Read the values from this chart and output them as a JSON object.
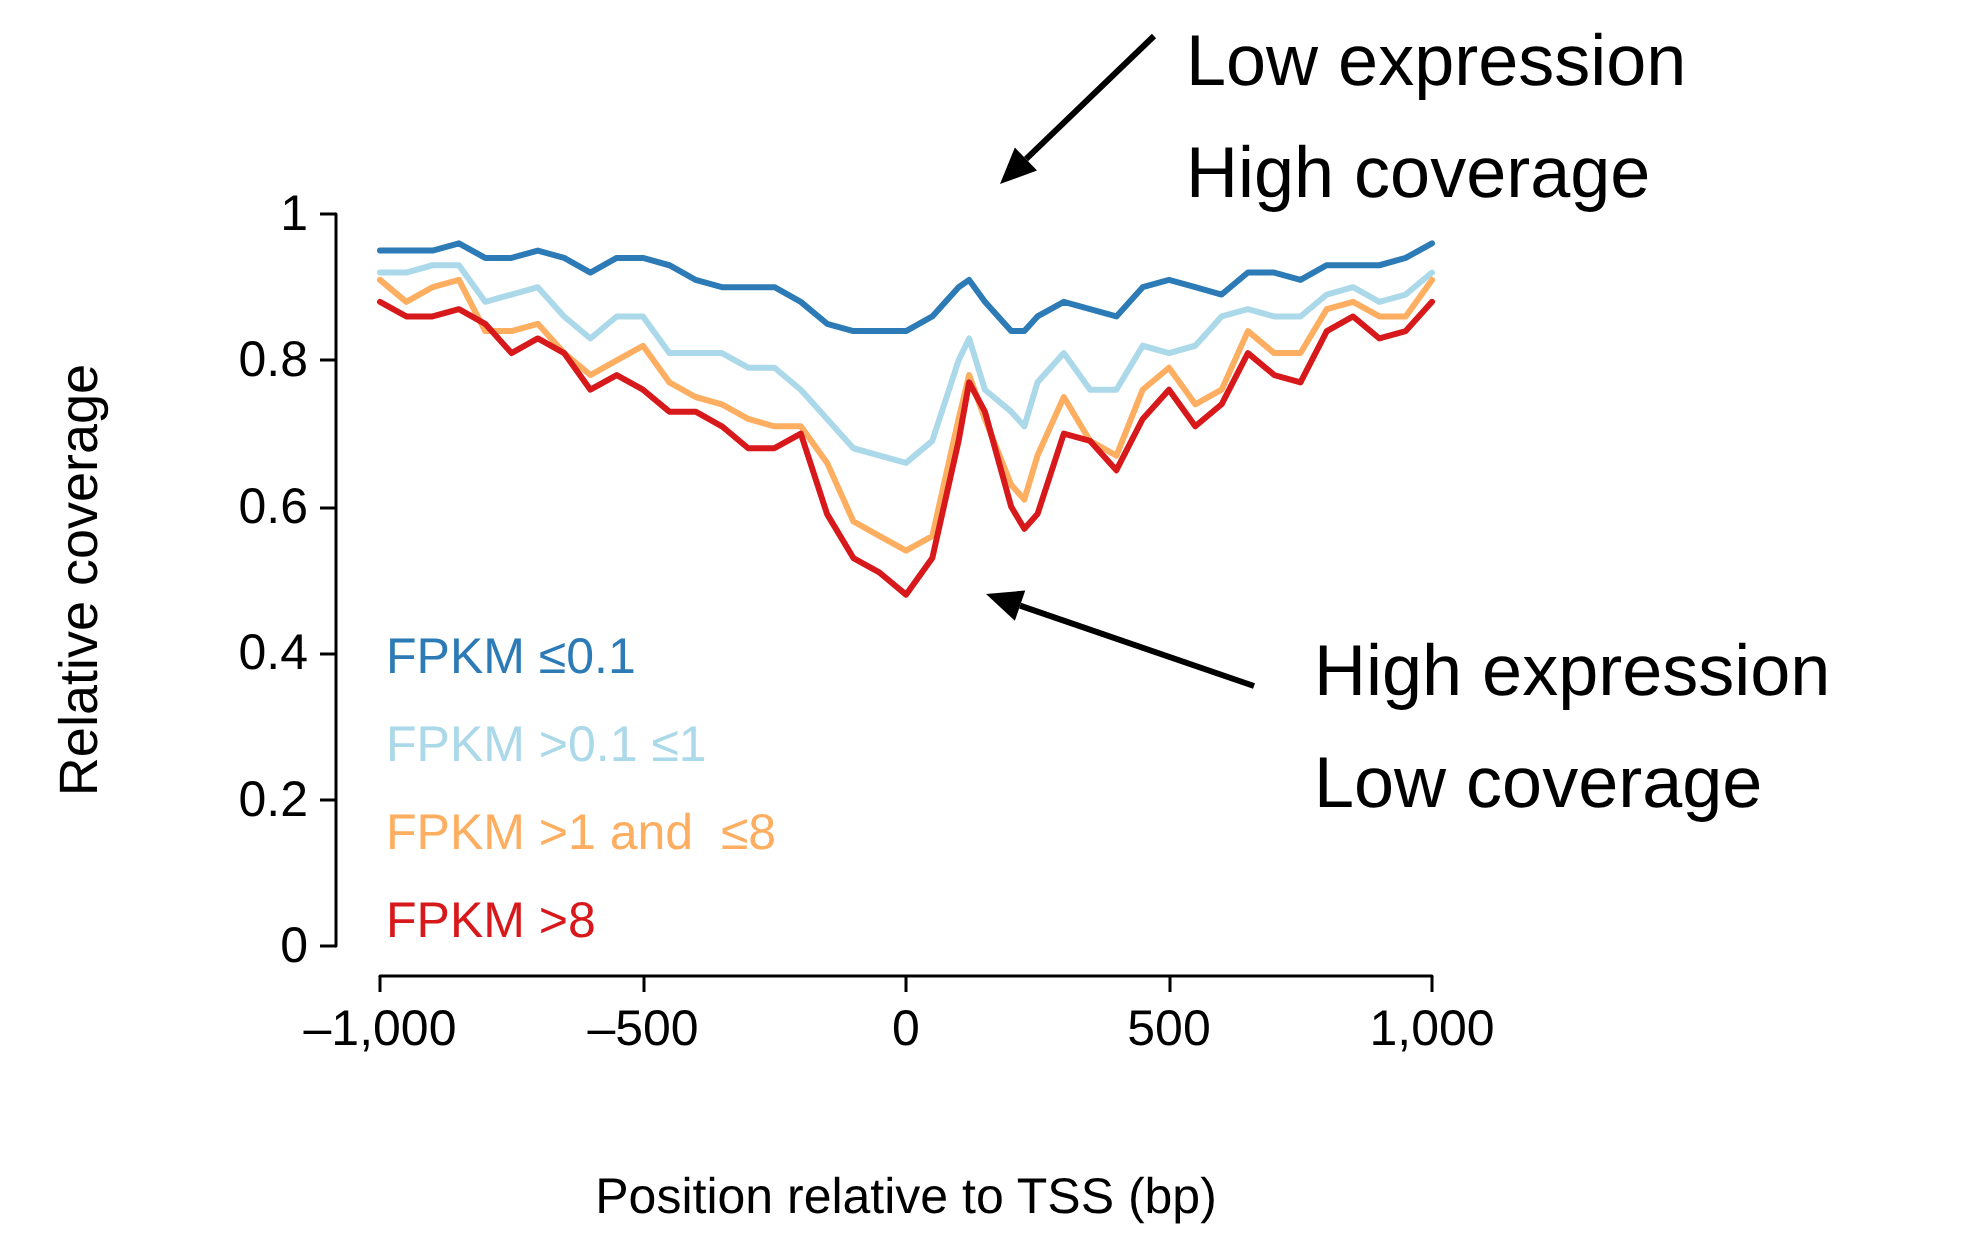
{
  "chart_data": {
    "type": "line",
    "xlabel": "Position relative to TSS (bp)",
    "ylabel": "Relative coverage",
    "x": [
      -1000,
      -950,
      -900,
      -850,
      -800,
      -750,
      -700,
      -650,
      -600,
      -550,
      -500,
      -450,
      -400,
      -350,
      -300,
      -250,
      -200,
      -150,
      -100,
      -50,
      0,
      50,
      100,
      120,
      150,
      200,
      225,
      250,
      300,
      350,
      400,
      450,
      500,
      550,
      600,
      650,
      700,
      750,
      800,
      850,
      900,
      950,
      1000
    ],
    "series": [
      {
        "name": "FPKM ≤0.1",
        "color": "#2c7bb6",
        "values": [
          0.95,
          0.95,
          0.95,
          0.96,
          0.94,
          0.94,
          0.95,
          0.94,
          0.92,
          0.94,
          0.94,
          0.93,
          0.91,
          0.9,
          0.9,
          0.9,
          0.88,
          0.85,
          0.84,
          0.84,
          0.84,
          0.86,
          0.9,
          0.91,
          0.88,
          0.84,
          0.84,
          0.86,
          0.88,
          0.87,
          0.86,
          0.9,
          0.91,
          0.9,
          0.89,
          0.92,
          0.92,
          0.91,
          0.93,
          0.93,
          0.93,
          0.94,
          0.96
        ]
      },
      {
        "name": "FPKM >0.1 ≤1",
        "color": "#abd9e9",
        "values": [
          0.92,
          0.92,
          0.93,
          0.93,
          0.88,
          0.89,
          0.9,
          0.86,
          0.83,
          0.86,
          0.86,
          0.81,
          0.81,
          0.81,
          0.79,
          0.79,
          0.76,
          0.72,
          0.68,
          0.67,
          0.66,
          0.69,
          0.8,
          0.83,
          0.76,
          0.73,
          0.71,
          0.77,
          0.81,
          0.76,
          0.76,
          0.82,
          0.81,
          0.82,
          0.86,
          0.87,
          0.86,
          0.86,
          0.89,
          0.9,
          0.88,
          0.89,
          0.92
        ]
      },
      {
        "name": "FPKM >1 and  ≤8",
        "color": "#fdae61",
        "values": [
          0.91,
          0.88,
          0.9,
          0.91,
          0.84,
          0.84,
          0.85,
          0.81,
          0.78,
          0.8,
          0.82,
          0.77,
          0.75,
          0.74,
          0.72,
          0.71,
          0.71,
          0.66,
          0.58,
          0.56,
          0.54,
          0.56,
          0.72,
          0.78,
          0.72,
          0.63,
          0.61,
          0.67,
          0.75,
          0.69,
          0.67,
          0.76,
          0.79,
          0.74,
          0.76,
          0.84,
          0.81,
          0.81,
          0.87,
          0.88,
          0.86,
          0.86,
          0.91
        ]
      },
      {
        "name": "FPKM >8",
        "color": "#d7191c",
        "values": [
          0.88,
          0.86,
          0.86,
          0.87,
          0.85,
          0.81,
          0.83,
          0.81,
          0.76,
          0.78,
          0.76,
          0.73,
          0.73,
          0.71,
          0.68,
          0.68,
          0.7,
          0.59,
          0.53,
          0.51,
          0.48,
          0.53,
          0.69,
          0.77,
          0.73,
          0.6,
          0.57,
          0.59,
          0.7,
          0.69,
          0.65,
          0.72,
          0.76,
          0.71,
          0.74,
          0.81,
          0.78,
          0.77,
          0.84,
          0.86,
          0.83,
          0.84,
          0.88
        ]
      }
    ],
    "xlim": [
      -1000,
      1000
    ],
    "xticks": [
      {
        "value": -1000,
        "label": "–1,000"
      },
      {
        "value": -500,
        "label": "–500"
      },
      0,
      500,
      {
        "value": 1000,
        "label": "1,000"
      }
    ],
    "ylim": [
      0,
      1
    ],
    "yticks": [
      0,
      0.2,
      0.4,
      0.6,
      0.8,
      1
    ],
    "grid": false,
    "legend": "bottom left",
    "marker": "none",
    "line_style": "solid",
    "annotations": [
      "Low expression\nHigh coverage",
      "High expression\nLow coverage"
    ]
  }
}
